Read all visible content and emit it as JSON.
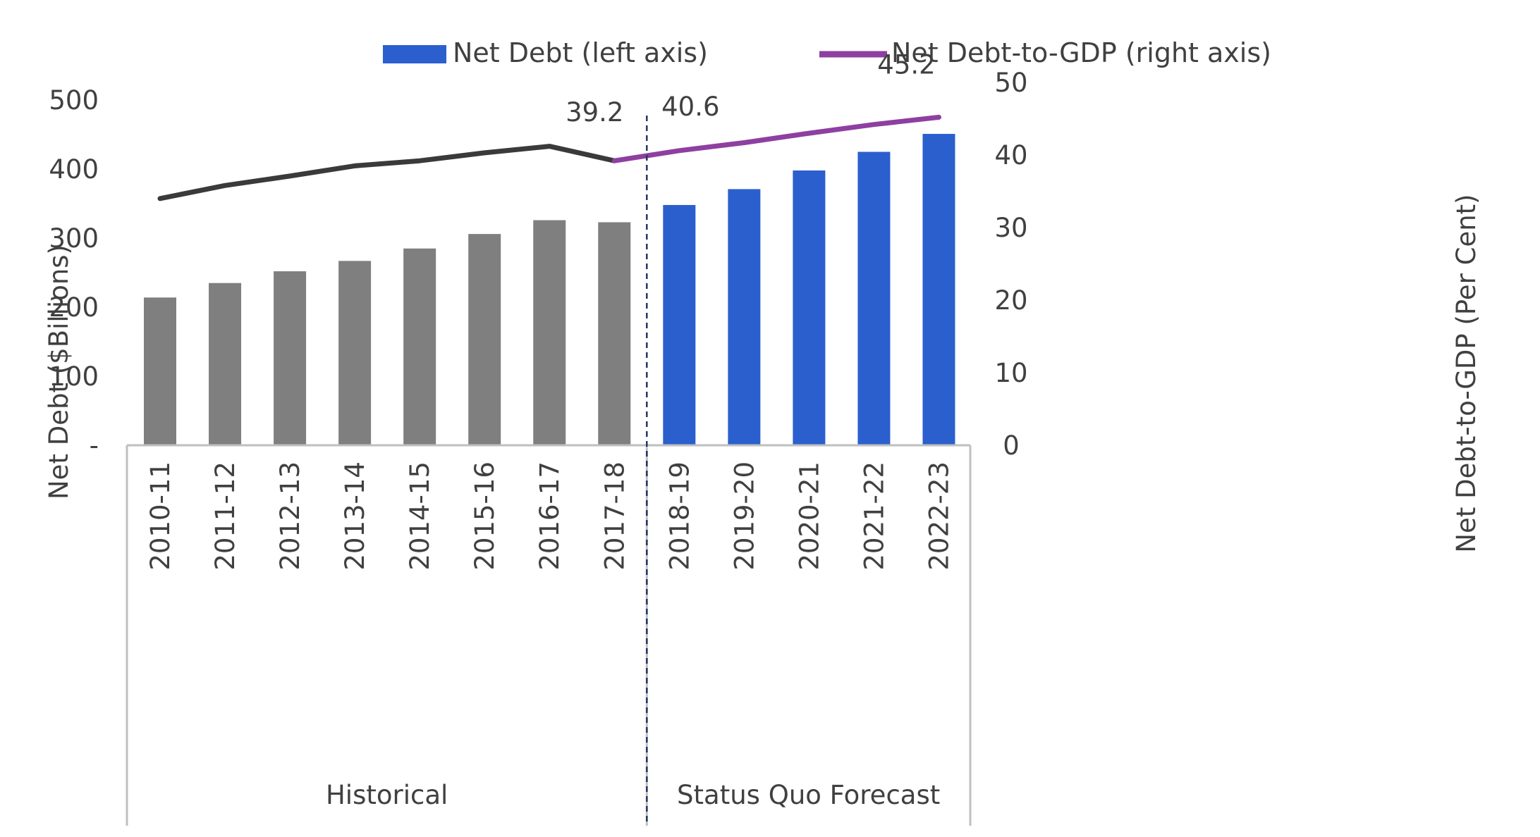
{
  "chart_data": {
    "type": "bar",
    "categories": [
      "2010-11",
      "2011-12",
      "2012-13",
      "2013-14",
      "2014-15",
      "2015-16",
      "2016-17",
      "2017-18",
      "2018-19",
      "2019-20",
      "2020-21",
      "2021-22",
      "2022-23"
    ],
    "series": [
      {
        "name": "Net Debt (left axis)",
        "type": "bar",
        "axis": "left",
        "values": [
          214,
          235,
          252,
          267,
          285,
          306,
          326,
          323,
          348,
          371,
          398,
          425,
          451
        ]
      },
      {
        "name": "Net Debt-to-GDP (right axis)",
        "type": "line",
        "axis": "right",
        "values": [
          34.0,
          35.8,
          37.1,
          38.5,
          39.2,
          40.3,
          41.2,
          39.2,
          40.6,
          41.7,
          43.0,
          44.2,
          45.2
        ]
      }
    ],
    "groups": [
      {
        "label": "Historical",
        "categories": [
          "2010-11",
          "2011-12",
          "2012-13",
          "2013-14",
          "2014-15",
          "2015-16",
          "2016-17",
          "2017-18"
        ]
      },
      {
        "label": "Status Quo Forecast",
        "categories": [
          "2018-19",
          "2019-20",
          "2020-21",
          "2021-22",
          "2022-23"
        ]
      }
    ],
    "data_labels": [
      {
        "series": "Net Debt-to-GDP (right axis)",
        "category": "2017-18",
        "text": "39.2"
      },
      {
        "series": "Net Debt-to-GDP (right axis)",
        "category": "2018-19",
        "text": "40.6"
      },
      {
        "series": "Net Debt-to-GDP (right axis)",
        "category": "2022-23",
        "text": "45.2"
      }
    ],
    "ylabel_left": "Net Debt ($Billions)",
    "ylabel_right": "Net Debt-to-GDP (Per Cent)",
    "ylim_left": [
      0,
      500
    ],
    "ylim_right": [
      0,
      50
    ],
    "yticks_left": [
      "-",
      "100",
      "200",
      "300",
      "400",
      "500"
    ],
    "yticks_right": [
      "0",
      "10",
      "20",
      "30",
      "40",
      "50"
    ],
    "legend_position": "top",
    "grid": false,
    "colors": {
      "historical_bar": "#7f7f7f",
      "forecast_bar": "#2b5fce",
      "historical_line": "#3a3a3a",
      "forecast_line": "#8e3fa0",
      "axis": "#bfbfbf",
      "divider": "#1f3864"
    }
  }
}
